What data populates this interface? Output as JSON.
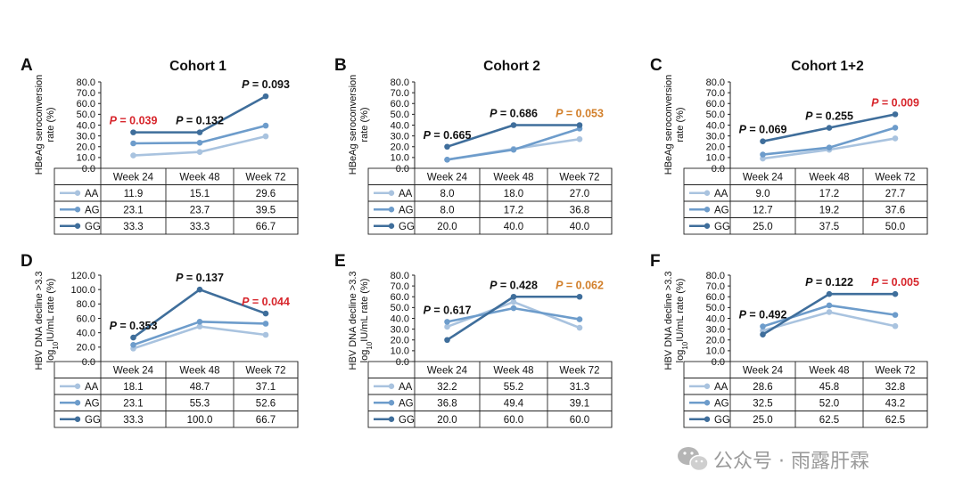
{
  "colors": {
    "AA": "#a9c3df",
    "AG": "#6d9ccb",
    "GG": "#3f6e9b",
    "red": "#d7262c",
    "orange": "#d27f2a",
    "black": "#111111"
  },
  "chart_data": [
    {
      "letter": "A",
      "title": "Cohort 1",
      "type": "line",
      "ylabel_lines": [
        "HBeAg seroconversion",
        "rate (%)"
      ],
      "ylim": [
        0,
        80
      ],
      "yticks": [
        "0.0",
        "10.0",
        "20.0",
        "30.0",
        "40.0",
        "50.0",
        "60.0",
        "70.0",
        "80.0"
      ],
      "categories": [
        "Week 24",
        "Week 48",
        "Week 72"
      ],
      "series": [
        {
          "name": "AA",
          "values": [
            "11.9",
            "15.1",
            "29.6"
          ]
        },
        {
          "name": "AG",
          "values": [
            "23.1",
            "23.7",
            "39.5"
          ]
        },
        {
          "name": "GG",
          "values": [
            "33.3",
            "33.3",
            "66.7"
          ]
        }
      ],
      "pvalues": [
        {
          "prefix": "P",
          "text": " = 0.039",
          "color": "red"
        },
        {
          "prefix": "P",
          "text": " = 0.132",
          "color": "black"
        },
        {
          "prefix": "P",
          "text": " = 0.093",
          "color": "black"
        }
      ]
    },
    {
      "letter": "B",
      "title": "Cohort 2",
      "type": "line",
      "ylabel_lines": [
        "HBeAg seroconversion",
        "rate (%)"
      ],
      "ylim": [
        0,
        80
      ],
      "yticks": [
        "0.0",
        "10.0",
        "20.0",
        "30.0",
        "40.0",
        "50.0",
        "60.0",
        "70.0",
        "80.0"
      ],
      "categories": [
        "Week 24",
        "Week 48",
        "Week 72"
      ],
      "series": [
        {
          "name": "AA",
          "values": [
            "8.0",
            "18.0",
            "27.0"
          ]
        },
        {
          "name": "AG",
          "values": [
            "8.0",
            "17.2",
            "36.8"
          ]
        },
        {
          "name": "GG",
          "values": [
            "20.0",
            "40.0",
            "40.0"
          ]
        }
      ],
      "pvalues": [
        {
          "prefix": "P",
          "text": " = 0.665",
          "color": "black"
        },
        {
          "prefix": "P",
          "text": " = 0.686",
          "color": "black"
        },
        {
          "prefix": "P",
          "text": " = 0.053",
          "color": "orange"
        }
      ]
    },
    {
      "letter": "C",
      "title": "Cohort 1+2",
      "type": "line",
      "ylabel_lines": [
        "HBeAg seroconversion",
        "rate (%)"
      ],
      "ylim": [
        0,
        80
      ],
      "yticks": [
        "0.0",
        "10.0",
        "20.0",
        "30.0",
        "40.0",
        "50.0",
        "60.0",
        "70.0",
        "80.0"
      ],
      "categories": [
        "Week 24",
        "Week 48",
        "Week 72"
      ],
      "series": [
        {
          "name": "AA",
          "values": [
            "9.0",
            "17.2",
            "27.7"
          ]
        },
        {
          "name": "AG",
          "values": [
            "12.7",
            "19.2",
            "37.6"
          ]
        },
        {
          "name": "GG",
          "values": [
            "25.0",
            "37.5",
            "50.0"
          ]
        }
      ],
      "pvalues": [
        {
          "prefix": "P",
          "text": " = 0.069",
          "color": "black"
        },
        {
          "prefix": "P",
          "text": " = 0.255",
          "color": "black"
        },
        {
          "prefix": "P",
          "text": " = 0.009",
          "color": "red"
        }
      ]
    },
    {
      "letter": "D",
      "title": "",
      "type": "line",
      "ylabel_lines": [
        "HBV DNA decline >3.3",
        "log10IU/mL rate (%)"
      ],
      "ylim": [
        0,
        120
      ],
      "yticks": [
        "0.0",
        "20.0",
        "40.0",
        "60.0",
        "80.0",
        "100.0",
        "120.0"
      ],
      "categories": [
        "Week 24",
        "Week 48",
        "Week 72"
      ],
      "series": [
        {
          "name": "AA",
          "values": [
            "18.1",
            "48.7",
            "37.1"
          ]
        },
        {
          "name": "AG",
          "values": [
            "23.1",
            "55.3",
            "52.6"
          ]
        },
        {
          "name": "GG",
          "values": [
            "33.3",
            "100.0",
            "66.7"
          ]
        }
      ],
      "pvalues": [
        {
          "prefix": "P",
          "text": " = 0.353",
          "color": "black"
        },
        {
          "prefix": "P",
          "text": " = 0.137",
          "color": "black"
        },
        {
          "prefix": "P",
          "text": " = 0.044",
          "color": "red"
        }
      ]
    },
    {
      "letter": "E",
      "title": "",
      "type": "line",
      "ylabel_lines": [
        "HBV DNA decline >3.3",
        "log10IU/mL rate (%)"
      ],
      "ylim": [
        0,
        80
      ],
      "yticks": [
        "0.0",
        "10.0",
        "20.0",
        "30.0",
        "40.0",
        "50.0",
        "60.0",
        "70.0",
        "80.0"
      ],
      "categories": [
        "Week 24",
        "Week 48",
        "Week 72"
      ],
      "series": [
        {
          "name": "AA",
          "values": [
            "32.2",
            "55.2",
            "31.3"
          ]
        },
        {
          "name": "AG",
          "values": [
            "36.8",
            "49.4",
            "39.1"
          ]
        },
        {
          "name": "GG",
          "values": [
            "20.0",
            "60.0",
            "60.0"
          ]
        }
      ],
      "pvalues": [
        {
          "prefix": "P",
          "text": " = 0.617",
          "color": "black"
        },
        {
          "prefix": "P",
          "text": " = 0.428",
          "color": "black"
        },
        {
          "prefix": "P",
          "text": " = 0.062",
          "color": "orange"
        }
      ]
    },
    {
      "letter": "F",
      "title": "",
      "type": "line",
      "ylabel_lines": [
        "HBV DNA decline >3.3",
        "log10IU/mL rate (%)"
      ],
      "ylim": [
        0,
        80
      ],
      "yticks": [
        "0.0",
        "10.0",
        "20.0",
        "30.0",
        "40.0",
        "50.0",
        "60.0",
        "70.0",
        "80.0"
      ],
      "categories": [
        "Week 24",
        "Week 48",
        "Week 72"
      ],
      "series": [
        {
          "name": "AA",
          "values": [
            "28.6",
            "45.8",
            "32.8"
          ]
        },
        {
          "name": "AG",
          "values": [
            "32.5",
            "52.0",
            "43.2"
          ]
        },
        {
          "name": "GG",
          "values": [
            "25.0",
            "62.5",
            "62.5"
          ]
        }
      ],
      "pvalues": [
        {
          "prefix": "P",
          "text": " = 0.492",
          "color": "black"
        },
        {
          "prefix": "P",
          "text": " = 0.122",
          "color": "black"
        },
        {
          "prefix": "P",
          "text": " = 0.005",
          "color": "red"
        }
      ]
    }
  ],
  "watermark": {
    "text": "公众号 · 雨露肝霖",
    "icon": "wechat-icon"
  }
}
